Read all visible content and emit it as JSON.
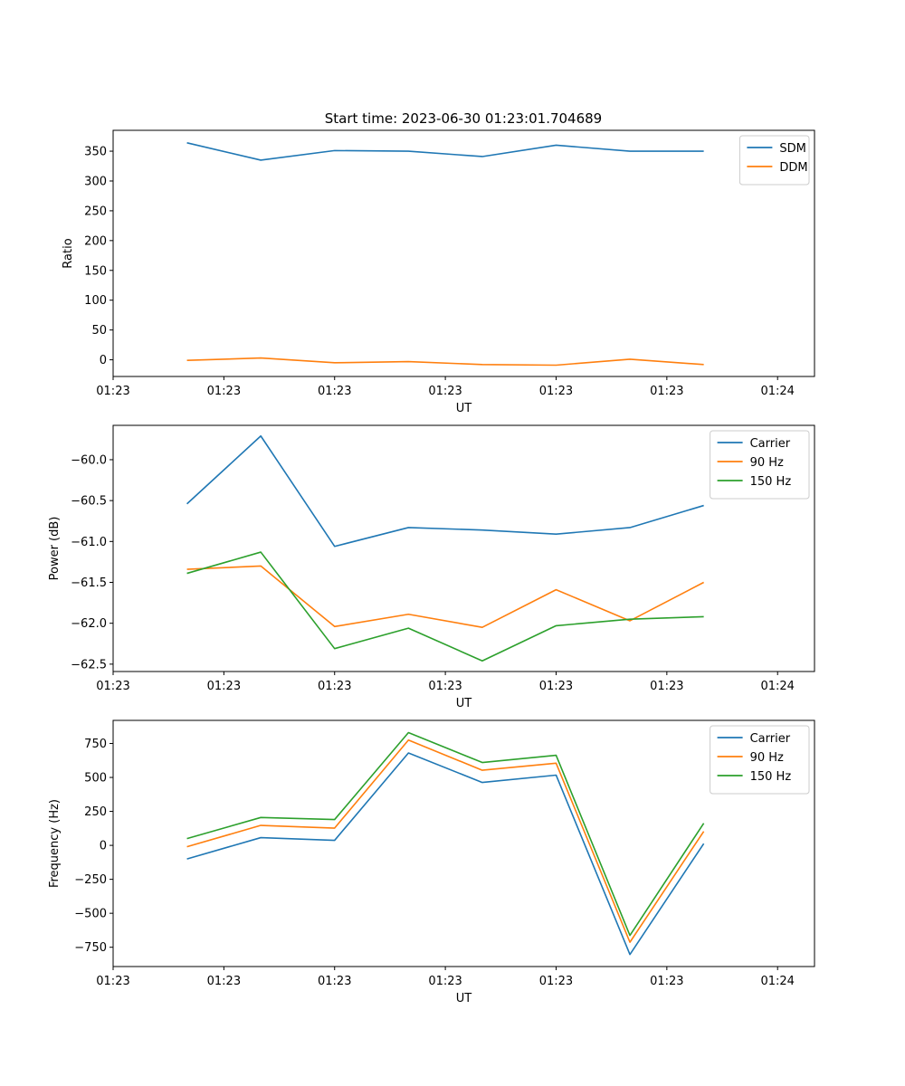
{
  "figure": {
    "title": "Start time: 2023-06-30 01:23:01.704689"
  },
  "chart_data": [
    {
      "type": "line",
      "xlabel": "UT",
      "ylabel": "Ratio",
      "x_tick_labels": [
        "01:23",
        "01:23",
        "01:23",
        "01:23",
        "01:23",
        "01:23",
        "01:24"
      ],
      "x_points": [
        1,
        2,
        3,
        4,
        5,
        6,
        7,
        8
      ],
      "xlim": [
        0,
        9.5
      ],
      "x_tick_values": [
        0,
        1.5,
        3,
        4.5,
        6,
        7.5,
        9
      ],
      "ylim": [
        -28,
        385
      ],
      "y_ticks": [
        0,
        50,
        100,
        150,
        200,
        250,
        300,
        350
      ],
      "y_tick_labels": [
        "0",
        "50",
        "100",
        "150",
        "200",
        "250",
        "300",
        "350"
      ],
      "legend_position": "upper-right",
      "series": [
        {
          "name": "SDM",
          "color": "#1f77b4",
          "values": [
            364,
            335,
            351,
            350,
            341,
            360,
            350,
            350
          ]
        },
        {
          "name": "DDM",
          "color": "#ff7f0e",
          "values": [
            -1,
            3,
            -5,
            -3,
            -8,
            -9,
            1,
            -8
          ]
        }
      ]
    },
    {
      "type": "line",
      "xlabel": "UT",
      "ylabel": "Power (dB)",
      "x_tick_labels": [
        "01:23",
        "01:23",
        "01:23",
        "01:23",
        "01:23",
        "01:23",
        "01:24"
      ],
      "x_points": [
        1,
        2,
        3,
        4,
        5,
        6,
        7,
        8
      ],
      "xlim": [
        0,
        9.5
      ],
      "x_tick_values": [
        0,
        1.5,
        3,
        4.5,
        6,
        7.5,
        9
      ],
      "ylim": [
        -62.59,
        -59.58
      ],
      "y_ticks": [
        -62.5,
        -62.0,
        -61.5,
        -61.0,
        -60.5,
        -60.0
      ],
      "y_tick_labels": [
        "−62.5",
        "−62.0",
        "−61.5",
        "−61.0",
        "−60.5",
        "−60.0"
      ],
      "legend_position": "upper-right",
      "series": [
        {
          "name": "Carrier",
          "color": "#1f77b4",
          "values": [
            -60.54,
            -59.71,
            -61.06,
            -60.83,
            -60.86,
            -60.91,
            -60.83,
            -60.56
          ]
        },
        {
          "name": "90 Hz",
          "color": "#ff7f0e",
          "values": [
            -61.34,
            -61.3,
            -62.04,
            -61.89,
            -62.05,
            -61.59,
            -61.97,
            -61.5
          ]
        },
        {
          "name": "150 Hz",
          "color": "#2ca02c",
          "values": [
            -61.39,
            -61.13,
            -62.31,
            -62.06,
            -62.46,
            -62.03,
            -61.95,
            -61.92
          ]
        }
      ]
    },
    {
      "type": "line",
      "xlabel": "UT",
      "ylabel": "Frequency (Hz)",
      "x_tick_labels": [
        "01:23",
        "01:23",
        "01:23",
        "01:23",
        "01:23",
        "01:23",
        "01:24"
      ],
      "x_points": [
        1,
        2,
        3,
        4,
        5,
        6,
        7,
        8
      ],
      "xlim": [
        0,
        9.5
      ],
      "x_tick_values": [
        0,
        1.5,
        3,
        4.5,
        6,
        7.5,
        9
      ],
      "ylim": [
        -892,
        920
      ],
      "y_ticks": [
        -750,
        -500,
        -250,
        0,
        250,
        500,
        750
      ],
      "y_tick_labels": [
        "−750",
        "−500",
        "−250",
        "0",
        "250",
        "500",
        "750"
      ],
      "legend_position": "upper-right",
      "series": [
        {
          "name": "Carrier",
          "color": "#1f77b4",
          "values": [
            -100,
            57,
            37,
            680,
            463,
            517,
            -803,
            13
          ]
        },
        {
          "name": "90 Hz",
          "color": "#ff7f0e",
          "values": [
            -10,
            147,
            127,
            775,
            553,
            605,
            -713,
            103
          ]
        },
        {
          "name": "150 Hz",
          "color": "#2ca02c",
          "values": [
            50,
            205,
            190,
            830,
            610,
            663,
            -663,
            163
          ]
        }
      ]
    }
  ]
}
